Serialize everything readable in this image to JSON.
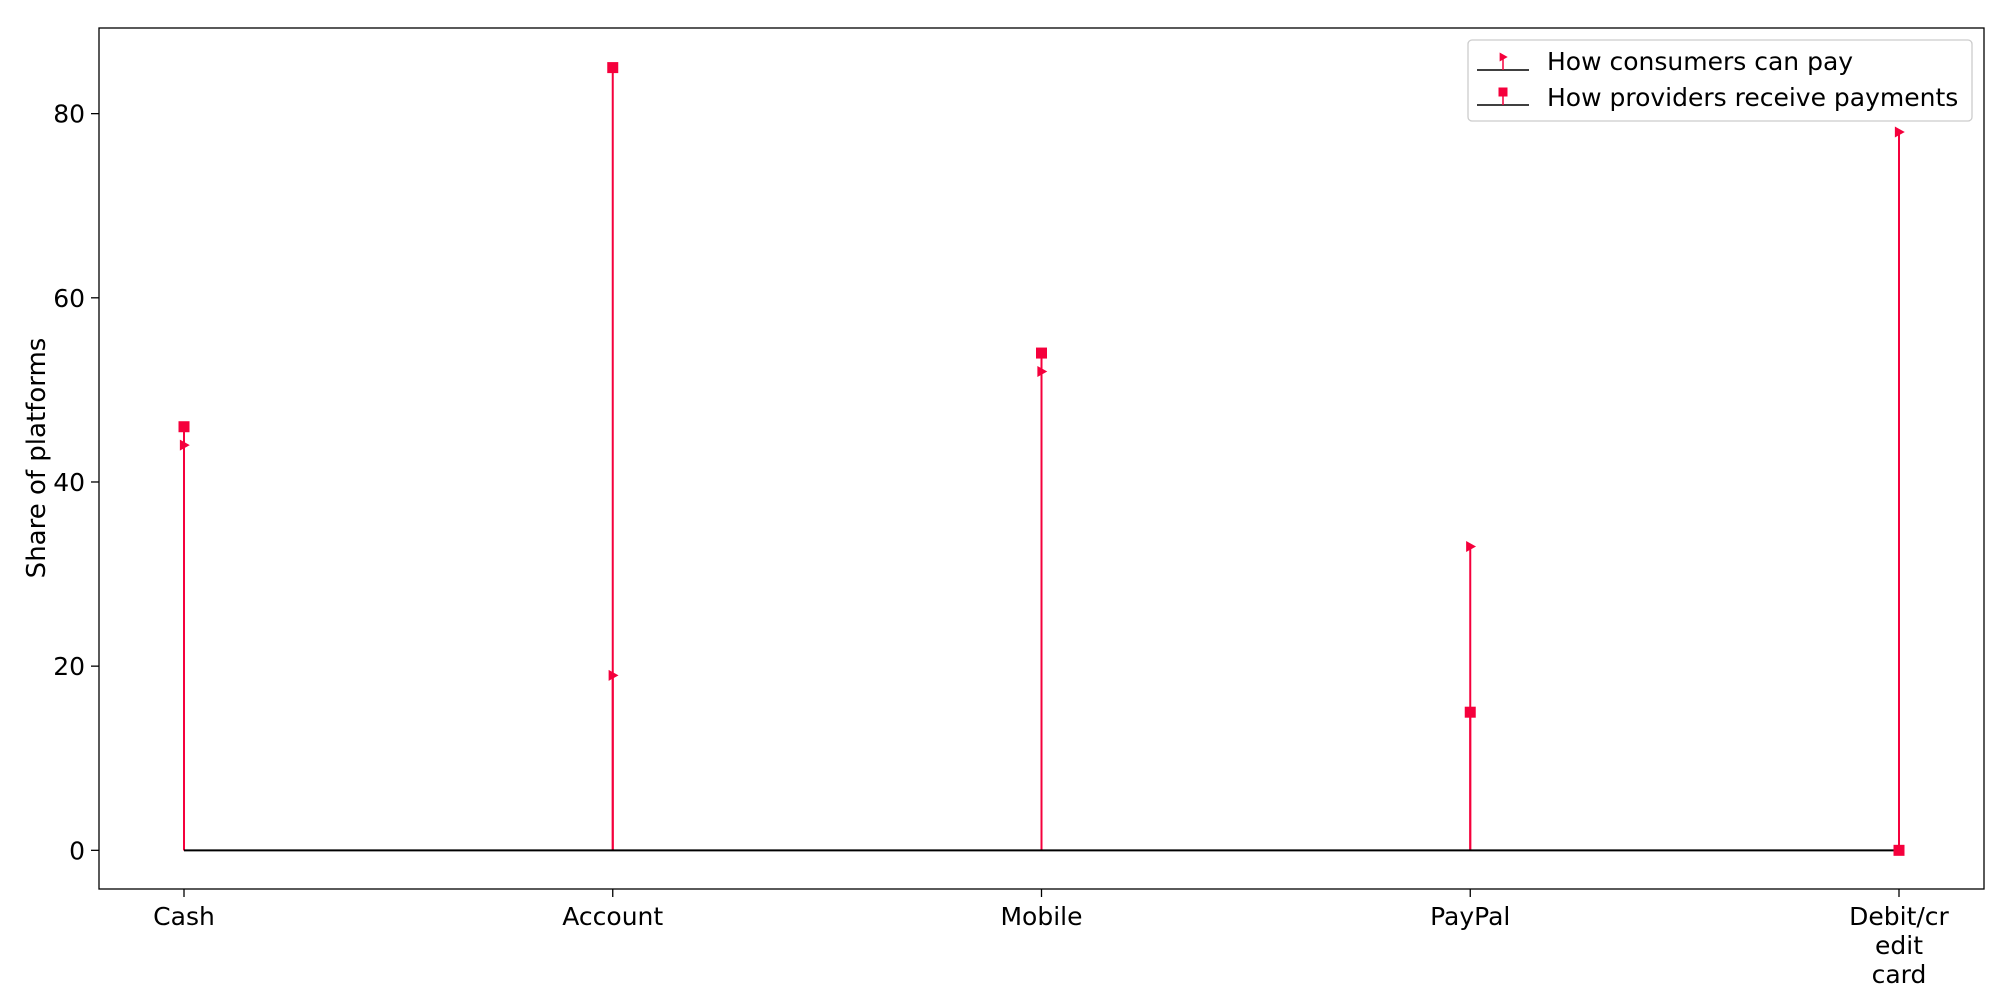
{
  "chart_data": {
    "type": "stem",
    "title": "",
    "xlabel": "",
    "ylabel": "Share of platforms",
    "categories": [
      "Cash",
      "Account",
      "Mobile",
      "PayPal",
      "Debit/credit card"
    ],
    "category_tick_lines": [
      [
        "Cash"
      ],
      [
        "Account"
      ],
      [
        "Mobile"
      ],
      [
        "PayPal"
      ],
      [
        "Debit/cr",
        "edit",
        "card"
      ]
    ],
    "ylim": [
      -4.2,
      89.3
    ],
    "yticks": [
      0,
      20,
      40,
      60,
      80
    ],
    "grid": false,
    "legend_position": "top-right",
    "stem_color": "#f5003c",
    "baseline_color": "#000000",
    "series": [
      {
        "name": "How consumers can pay",
        "marker": "triangle-right",
        "values": [
          44,
          19,
          52,
          33,
          78
        ]
      },
      {
        "name": "How providers receive payments",
        "marker": "square",
        "values": [
          46,
          85,
          54,
          15,
          0
        ]
      }
    ]
  }
}
